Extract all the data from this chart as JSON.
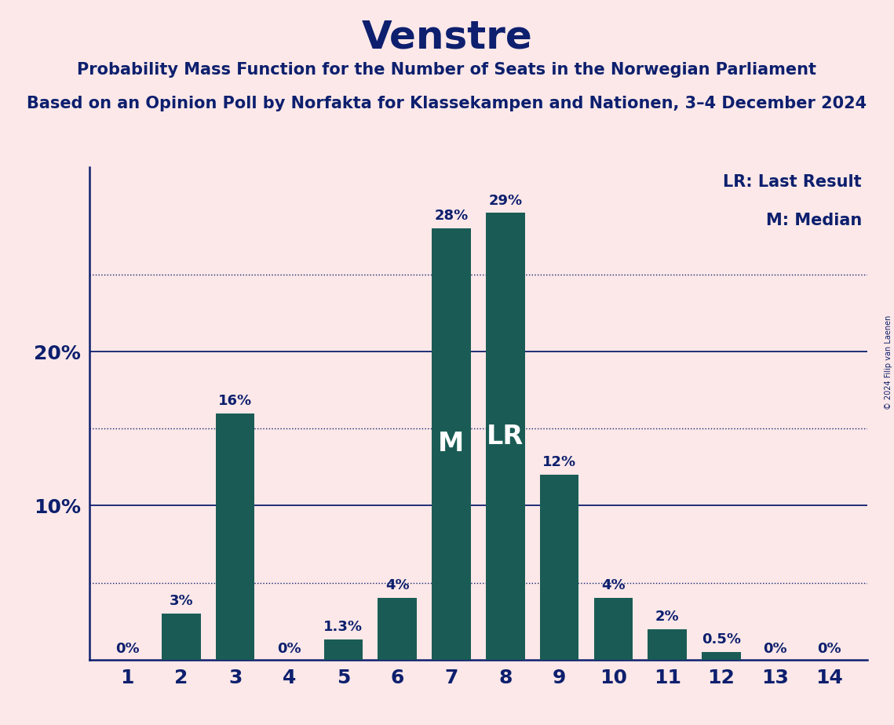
{
  "title": "Venstre",
  "subtitle1": "Probability Mass Function for the Number of Seats in the Norwegian Parliament",
  "subtitle2": "Based on an Opinion Poll by Norfakta for Klassekampen and Nationen, 3–4 December 2024",
  "copyright": "© 2024 Filip van Laenen",
  "seats": [
    1,
    2,
    3,
    4,
    5,
    6,
    7,
    8,
    9,
    10,
    11,
    12,
    13,
    14
  ],
  "probabilities": [
    0.0,
    3.0,
    16.0,
    0.0,
    1.3,
    4.0,
    28.0,
    29.0,
    12.0,
    4.0,
    2.0,
    0.5,
    0.0,
    0.0
  ],
  "bar_color": "#1a5c55",
  "background_color": "#fce8e8",
  "text_color": "#0d1f6e",
  "median_seat": 7,
  "last_result_seat": 8,
  "legend_lr": "LR: Last Result",
  "legend_m": "M: Median",
  "yticks_solid": [
    10,
    20
  ],
  "yticks_dotted": [
    5,
    15,
    25
  ],
  "ylim": [
    0,
    32
  ],
  "bar_labels": [
    "0%",
    "3%",
    "16%",
    "0%",
    "1.3%",
    "4%",
    "28%",
    "29%",
    "12%",
    "4%",
    "2%",
    "0.5%",
    "0%",
    "0%"
  ],
  "title_fontsize": 36,
  "subtitle_fontsize": 15,
  "tick_fontsize": 18,
  "label_fontsize": 13,
  "legend_fontsize": 15,
  "mlr_fontsize": 24
}
